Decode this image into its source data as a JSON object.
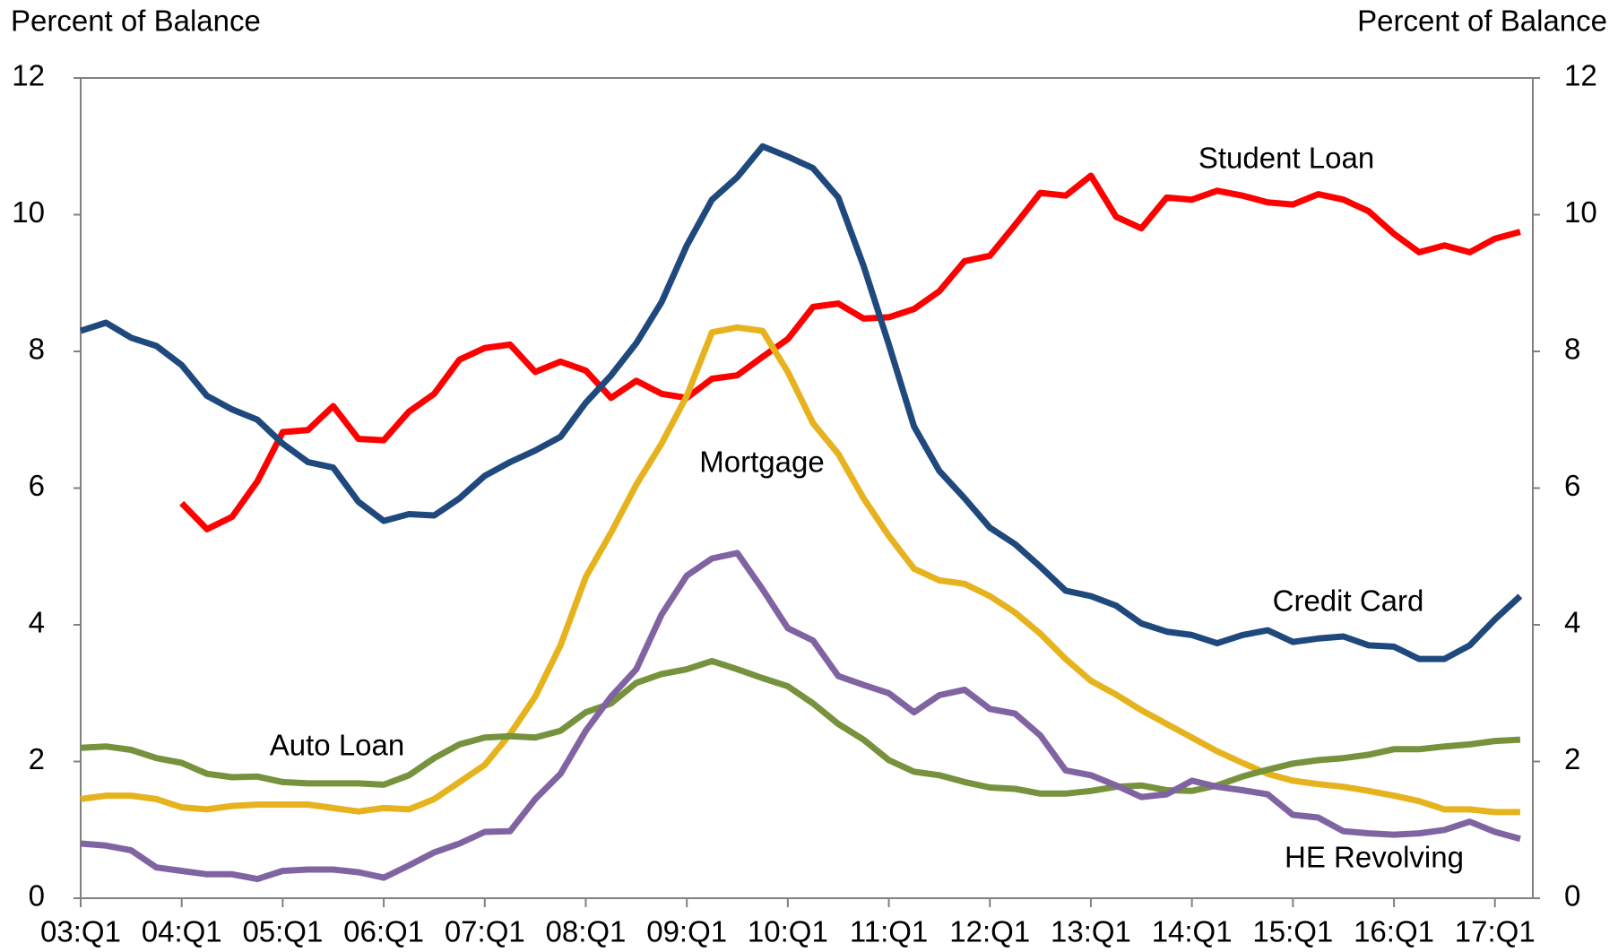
{
  "chart_data": {
    "type": "line",
    "ylabel": "Percent of Balance",
    "y2label": "Percent of Balance",
    "categories": [
      "03:Q1",
      null,
      null,
      null,
      "04:Q1",
      null,
      null,
      null,
      "05:Q1",
      null,
      null,
      null,
      "06:Q1",
      null,
      null,
      null,
      "07:Q1",
      null,
      null,
      null,
      "08:Q1",
      null,
      null,
      null,
      "09:Q1",
      null,
      null,
      null,
      "10:Q1",
      null,
      null,
      null,
      "11:Q1",
      null,
      null,
      null,
      "12:Q1",
      null,
      null,
      null,
      "13:Q1",
      null,
      null,
      null,
      "14:Q1",
      null,
      null,
      null,
      "15:Q1",
      null,
      null,
      null,
      "16:Q1",
      null,
      null,
      null,
      "17:Q1",
      null
    ],
    "ylim": [
      0,
      12
    ],
    "yticks": [
      0,
      2,
      4,
      6,
      8,
      10,
      12
    ],
    "y2lim": [
      0,
      12
    ],
    "y2ticks": [
      0,
      2,
      4,
      6,
      8,
      10,
      12
    ],
    "series": [
      {
        "name": "Student Loan",
        "color": "#ff0000",
        "values": [
          null,
          null,
          null,
          null,
          5.78,
          5.4,
          5.58,
          6.1,
          6.82,
          6.85,
          7.2,
          6.72,
          6.7,
          7.12,
          7.38,
          7.88,
          8.05,
          8.1,
          7.7,
          7.85,
          7.72,
          7.32,
          7.57,
          7.38,
          7.32,
          7.6,
          7.65,
          7.92,
          8.18,
          8.65,
          8.7,
          8.48,
          8.5,
          8.62,
          8.88,
          9.32,
          9.4,
          9.85,
          10.32,
          10.28,
          10.57,
          9.97,
          9.8,
          10.25,
          10.22,
          10.35,
          10.28,
          10.18,
          10.15,
          10.3,
          10.22,
          10.05,
          9.72,
          9.45,
          9.55,
          9.45,
          9.65,
          9.75
        ]
      },
      {
        "name": "Credit Card",
        "color": "#1f497d",
        "values": [
          8.3,
          8.42,
          8.2,
          8.08,
          7.8,
          7.35,
          7.15,
          7.0,
          6.65,
          6.38,
          6.3,
          5.8,
          5.52,
          5.62,
          5.6,
          5.85,
          6.18,
          6.38,
          6.55,
          6.75,
          7.25,
          7.65,
          8.12,
          8.72,
          9.55,
          10.22,
          10.55,
          11.0,
          10.85,
          10.68,
          10.25,
          9.25,
          8.1,
          6.9,
          6.25,
          5.85,
          5.42,
          5.18,
          4.85,
          4.5,
          4.42,
          4.28,
          4.02,
          3.9,
          3.85,
          3.73,
          3.85,
          3.92,
          3.75,
          3.8,
          3.83,
          3.7,
          3.68,
          3.5,
          3.5,
          3.7,
          4.08,
          4.42
        ]
      },
      {
        "name": "Mortgage",
        "color": "#e6b31e",
        "values": [
          1.45,
          1.5,
          1.5,
          1.45,
          1.33,
          1.3,
          1.35,
          1.37,
          1.37,
          1.37,
          1.32,
          1.27,
          1.32,
          1.3,
          1.45,
          1.7,
          1.95,
          2.4,
          2.95,
          3.7,
          4.7,
          5.35,
          6.05,
          6.65,
          7.35,
          8.28,
          8.35,
          8.3,
          7.7,
          6.95,
          6.5,
          5.85,
          5.3,
          4.82,
          4.65,
          4.6,
          4.42,
          4.18,
          3.87,
          3.5,
          3.18,
          2.98,
          2.75,
          2.55,
          2.35,
          2.15,
          1.98,
          1.82,
          1.72,
          1.67,
          1.63,
          1.57,
          1.5,
          1.42,
          1.3,
          1.3,
          1.26,
          1.26
        ]
      },
      {
        "name": "Auto Loan",
        "color": "#76923c",
        "values": [
          2.2,
          2.22,
          2.17,
          2.05,
          1.98,
          1.82,
          1.77,
          1.78,
          1.7,
          1.68,
          1.68,
          1.68,
          1.66,
          1.8,
          2.05,
          2.25,
          2.35,
          2.37,
          2.35,
          2.45,
          2.72,
          2.85,
          3.15,
          3.28,
          3.35,
          3.47,
          3.35,
          3.22,
          3.1,
          2.85,
          2.55,
          2.32,
          2.02,
          1.85,
          1.8,
          1.7,
          1.62,
          1.6,
          1.53,
          1.53,
          1.57,
          1.63,
          1.65,
          1.58,
          1.57,
          1.65,
          1.78,
          1.88,
          1.97,
          2.02,
          2.05,
          2.1,
          2.18,
          2.18,
          2.22,
          2.25,
          2.3,
          2.32
        ]
      },
      {
        "name": "HE Revolving",
        "color": "#8064a2",
        "values": [
          0.8,
          0.77,
          0.7,
          0.45,
          0.4,
          0.35,
          0.35,
          0.28,
          0.4,
          0.42,
          0.42,
          0.38,
          0.3,
          0.48,
          0.67,
          0.8,
          0.97,
          0.98,
          1.45,
          1.82,
          2.45,
          2.95,
          3.35,
          4.15,
          4.72,
          4.97,
          5.05,
          4.52,
          3.95,
          3.77,
          3.25,
          3.12,
          3.0,
          2.72,
          2.97,
          3.05,
          2.77,
          2.7,
          2.38,
          1.87,
          1.8,
          1.65,
          1.48,
          1.52,
          1.72,
          1.63,
          1.58,
          1.52,
          1.22,
          1.18,
          0.98,
          0.95,
          0.93,
          0.95,
          1.0,
          1.12,
          0.97,
          0.87
        ]
      }
    ]
  }
}
